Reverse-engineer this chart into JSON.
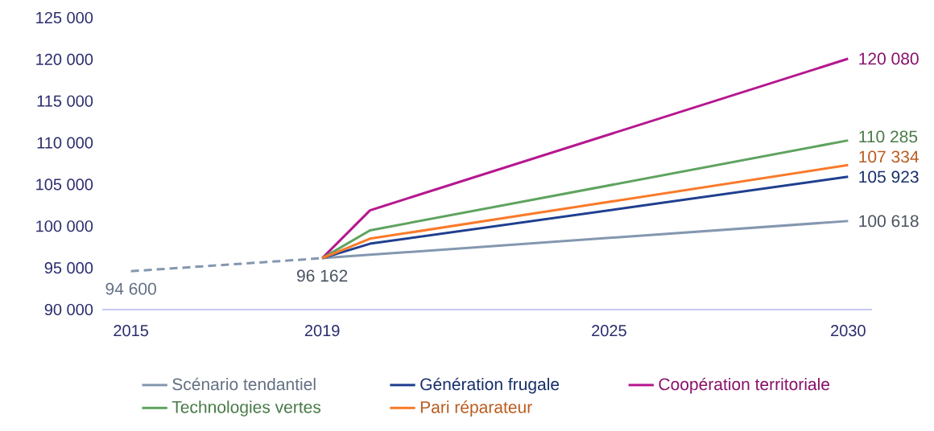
{
  "chart_data": {
    "type": "line",
    "xlim": [
      2014.4,
      2030.5
    ],
    "xticks": [
      2015,
      2019,
      2025,
      2030
    ],
    "ylim": [
      90000,
      125000
    ],
    "yticks": [
      {
        "value": 90000,
        "label": "90 000"
      },
      {
        "value": 95000,
        "label": "95 000"
      },
      {
        "value": 100000,
        "label": "100 000"
      },
      {
        "value": 105000,
        "label": "105 000"
      },
      {
        "value": 110000,
        "label": "110 000"
      },
      {
        "value": 115000,
        "label": "115 000"
      },
      {
        "value": 120000,
        "label": "120 000"
      },
      {
        "value": 125000,
        "label": "125 000"
      }
    ],
    "grid": false,
    "legend": "bottom",
    "marker": "none",
    "series": [
      {
        "color": "#8497b0",
        "line_style": "dashed",
        "x": [
          2015,
          2019
        ],
        "values": [
          94600,
          96162
        ],
        "value_labels": [
          "94 600",
          "96 162"
        ]
      },
      {
        "name": "Scénario tendantiel",
        "color": "#8497b0",
        "line_style": "solid",
        "x": [
          2019,
          2020,
          2030
        ],
        "values": [
          96162,
          96570,
          100618
        ],
        "value_labels": [
          null,
          null,
          "100 618"
        ]
      },
      {
        "name": "Génération frugale",
        "color": "#1f3f8f",
        "line_style": "solid",
        "x": [
          2019,
          2020,
          2030
        ],
        "values": [
          96162,
          97900,
          105923
        ],
        "value_labels": [
          null,
          null,
          "105 923"
        ]
      },
      {
        "name": "Coopération territoriale",
        "color": "#b5178f",
        "line_style": "solid",
        "x": [
          2019,
          2020,
          2030
        ],
        "values": [
          96162,
          101900,
          120080
        ],
        "value_labels": [
          null,
          null,
          "120 080"
        ]
      },
      {
        "name": "Technologies vertes",
        "color": "#5fa35f",
        "line_style": "solid",
        "x": [
          2019,
          2020,
          2030
        ],
        "values": [
          96162,
          99500,
          110285
        ],
        "value_labels": [
          null,
          null,
          "110 285"
        ]
      },
      {
        "name": "Pari réparateur",
        "color": "#f97a2a",
        "line_style": "solid",
        "x": [
          2019,
          2020,
          2030
        ],
        "values": [
          96162,
          98500,
          107334
        ],
        "value_labels": [
          null,
          null,
          "107 334"
        ]
      }
    ]
  }
}
